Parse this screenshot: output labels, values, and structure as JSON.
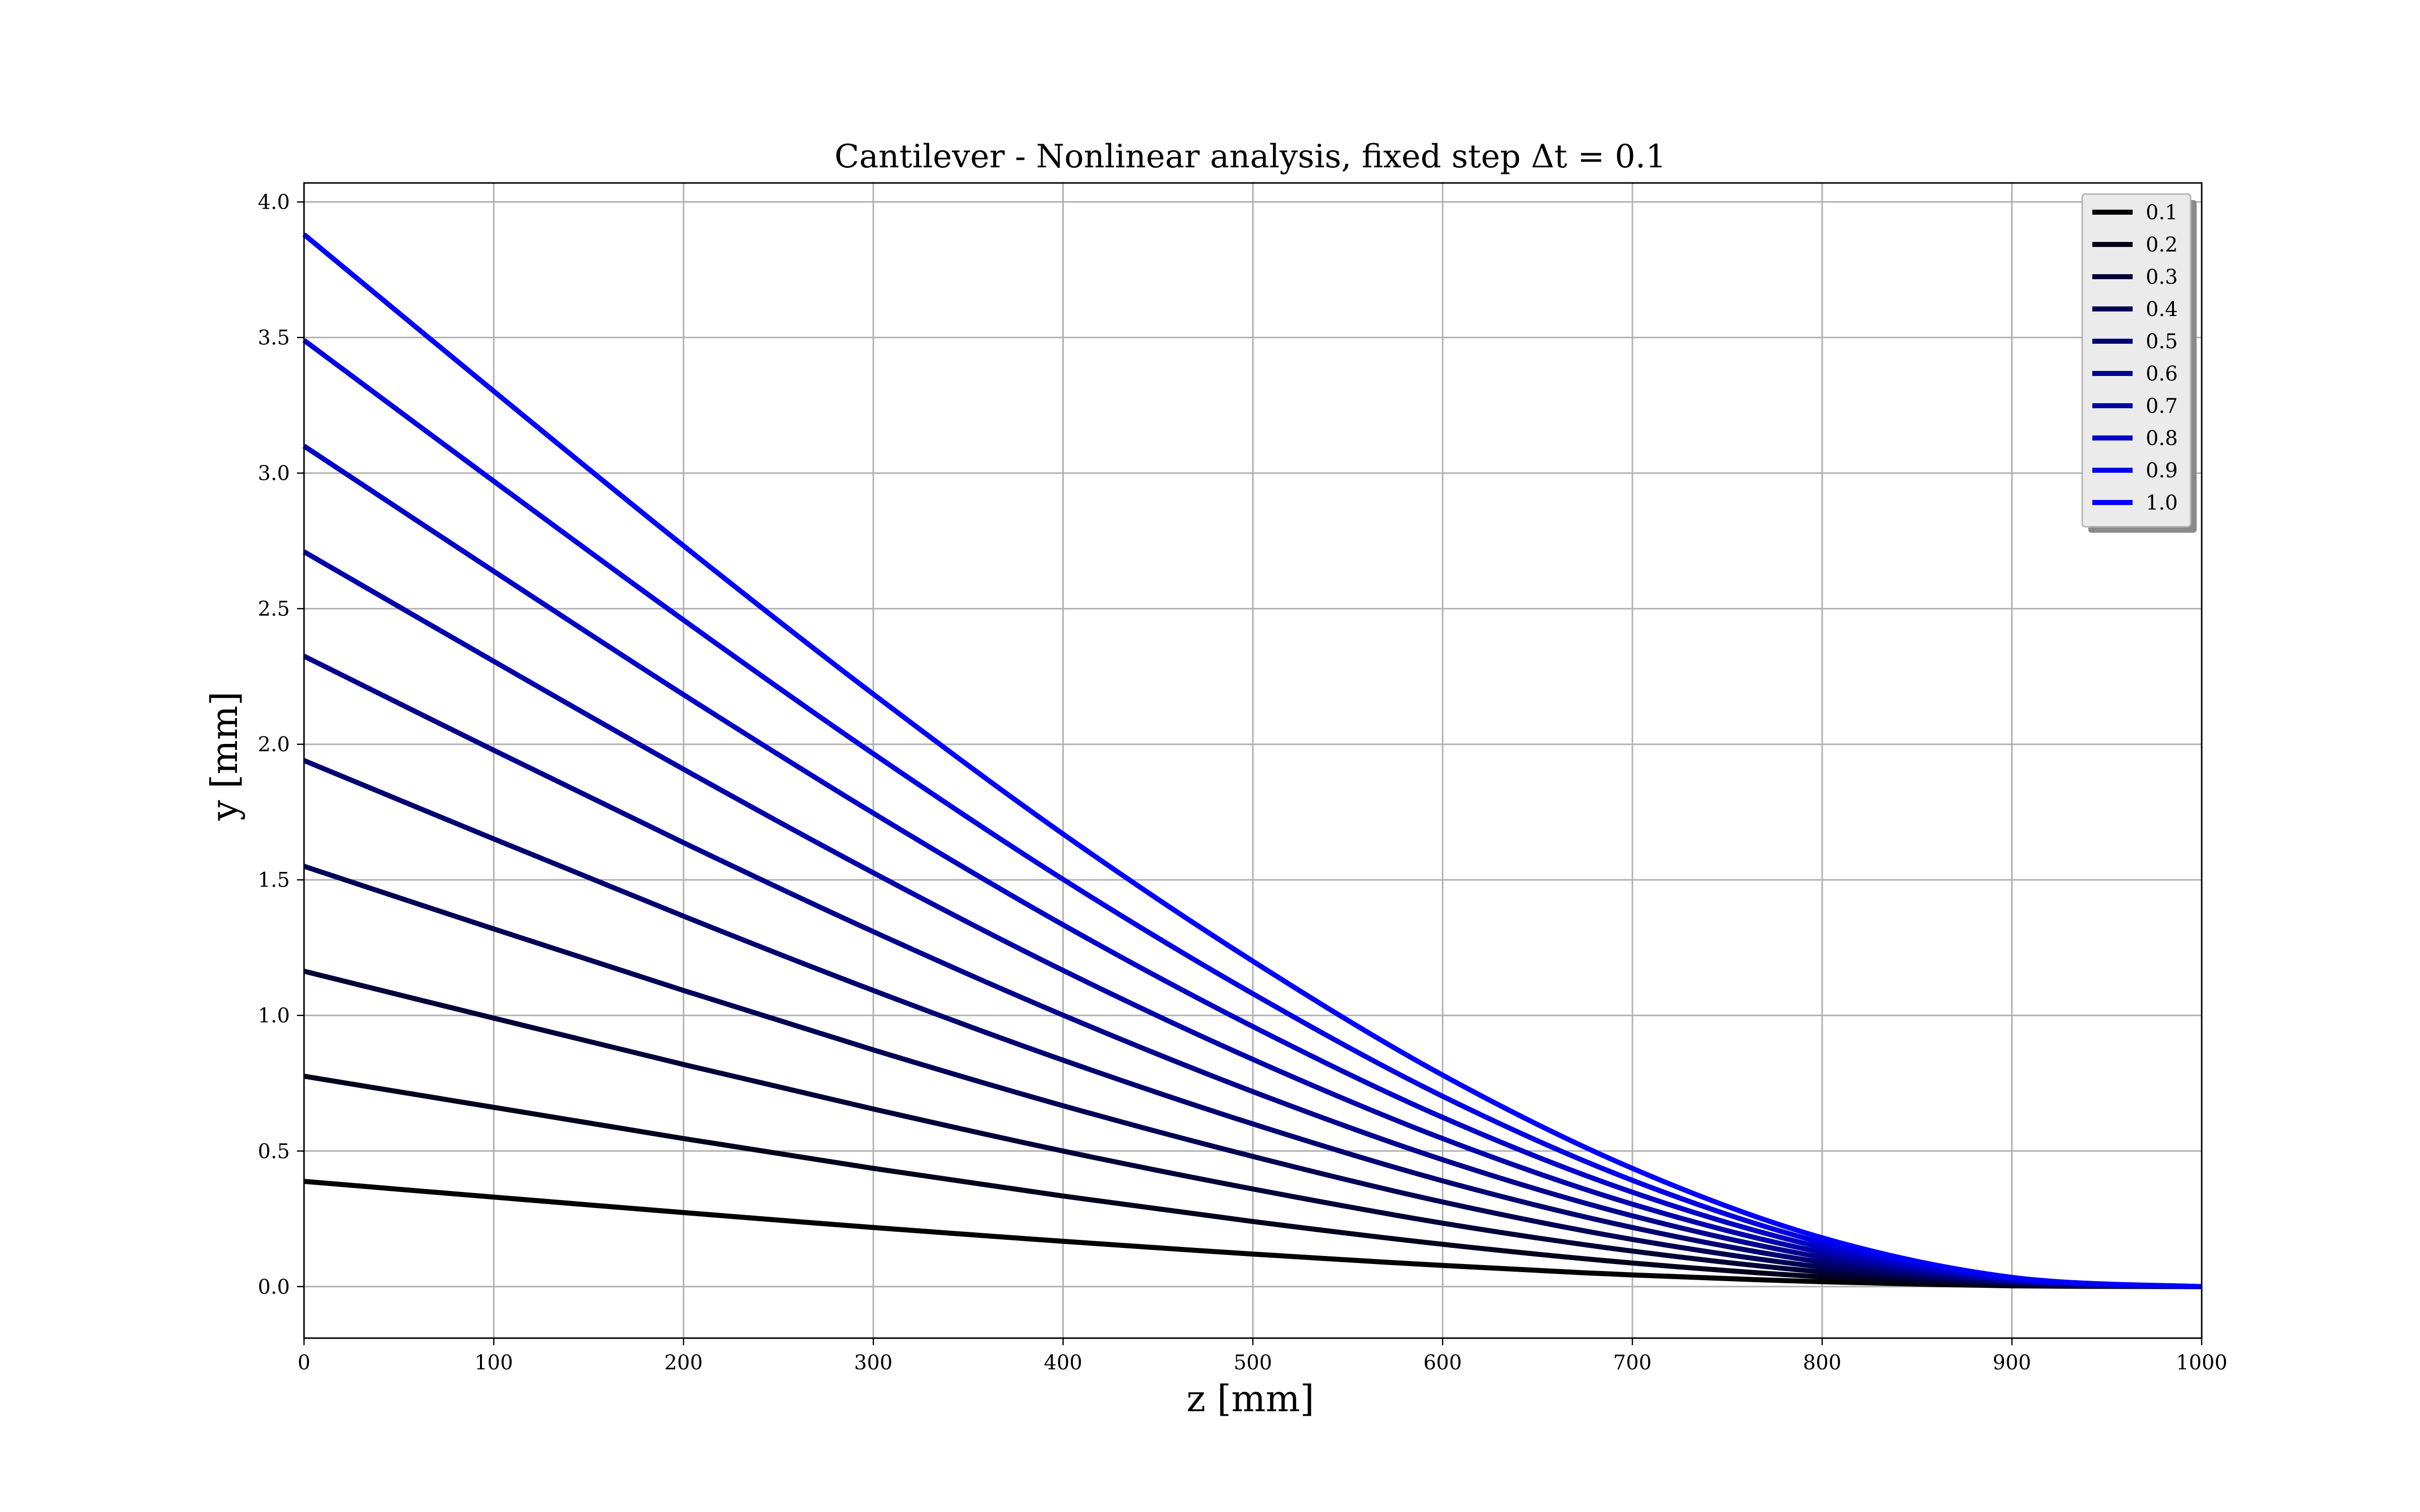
{
  "chart_data": {
    "type": "line",
    "title": "Cantilever - Nonlinear analysis, fixed step Δt = 0.1",
    "xlabel": "z [mm]",
    "ylabel": "y [mm]",
    "xlim": [
      0,
      1000
    ],
    "ylim": [
      -0.19,
      4.07
    ],
    "xticks": [
      0,
      100,
      200,
      300,
      400,
      500,
      600,
      700,
      800,
      900,
      1000
    ],
    "yticks": [
      0.0,
      0.5,
      1.0,
      1.5,
      2.0,
      2.5,
      3.0,
      3.5,
      4.0
    ],
    "xtick_labels": [
      "0",
      "100",
      "200",
      "300",
      "400",
      "500",
      "600",
      "700",
      "800",
      "900",
      "1000"
    ],
    "ytick_labels": [
      "0.0",
      "0.5",
      "1.0",
      "1.5",
      "2.0",
      "2.5",
      "3.0",
      "3.5",
      "4.0"
    ],
    "grid": true,
    "legend_position": "top-right",
    "x": [
      0,
      100,
      200,
      300,
      400,
      500,
      600,
      700,
      800,
      900,
      1000
    ],
    "series": [
      {
        "name": "0.1",
        "color": "#000000",
        "values": [
          0.388,
          0.33,
          0.273,
          0.218,
          0.167,
          0.12,
          0.078,
          0.043,
          0.018,
          0.003,
          0.0
        ]
      },
      {
        "name": "0.2",
        "color": "#00001c",
        "values": [
          0.776,
          0.661,
          0.546,
          0.436,
          0.334,
          0.24,
          0.156,
          0.087,
          0.036,
          0.007,
          0.0
        ]
      },
      {
        "name": "0.3",
        "color": "#000038",
        "values": [
          1.163,
          0.99,
          0.819,
          0.655,
          0.5,
          0.36,
          0.234,
          0.131,
          0.054,
          0.01,
          0.0
        ]
      },
      {
        "name": "0.4",
        "color": "#000055",
        "values": [
          1.55,
          1.319,
          1.092,
          0.873,
          0.667,
          0.48,
          0.312,
          0.174,
          0.072,
          0.014,
          0.0
        ]
      },
      {
        "name": "0.5",
        "color": "#000071",
        "values": [
          1.94,
          1.651,
          1.366,
          1.092,
          0.835,
          0.6,
          0.39,
          0.218,
          0.09,
          0.017,
          0.0
        ]
      },
      {
        "name": "0.6",
        "color": "#00008d",
        "values": [
          2.325,
          1.978,
          1.637,
          1.309,
          1.001,
          0.719,
          0.468,
          0.261,
          0.108,
          0.021,
          0.0
        ]
      },
      {
        "name": "0.7",
        "color": "#0000aa",
        "values": [
          2.71,
          2.306,
          1.908,
          1.526,
          1.166,
          0.838,
          0.546,
          0.304,
          0.126,
          0.024,
          0.0
        ]
      },
      {
        "name": "0.8",
        "color": "#0000c6",
        "values": [
          3.1,
          2.638,
          2.183,
          1.746,
          1.334,
          0.959,
          0.624,
          0.348,
          0.144,
          0.027,
          0.0
        ]
      },
      {
        "name": "0.9",
        "color": "#0000e2",
        "values": [
          3.49,
          2.97,
          2.458,
          1.965,
          1.502,
          1.08,
          0.702,
          0.392,
          0.162,
          0.031,
          0.0
        ]
      },
      {
        "name": "1.0",
        "color": "#0000ff",
        "values": [
          3.88,
          3.302,
          2.732,
          2.185,
          1.669,
          1.2,
          0.78,
          0.436,
          0.18,
          0.034,
          0.0
        ]
      }
    ]
  }
}
